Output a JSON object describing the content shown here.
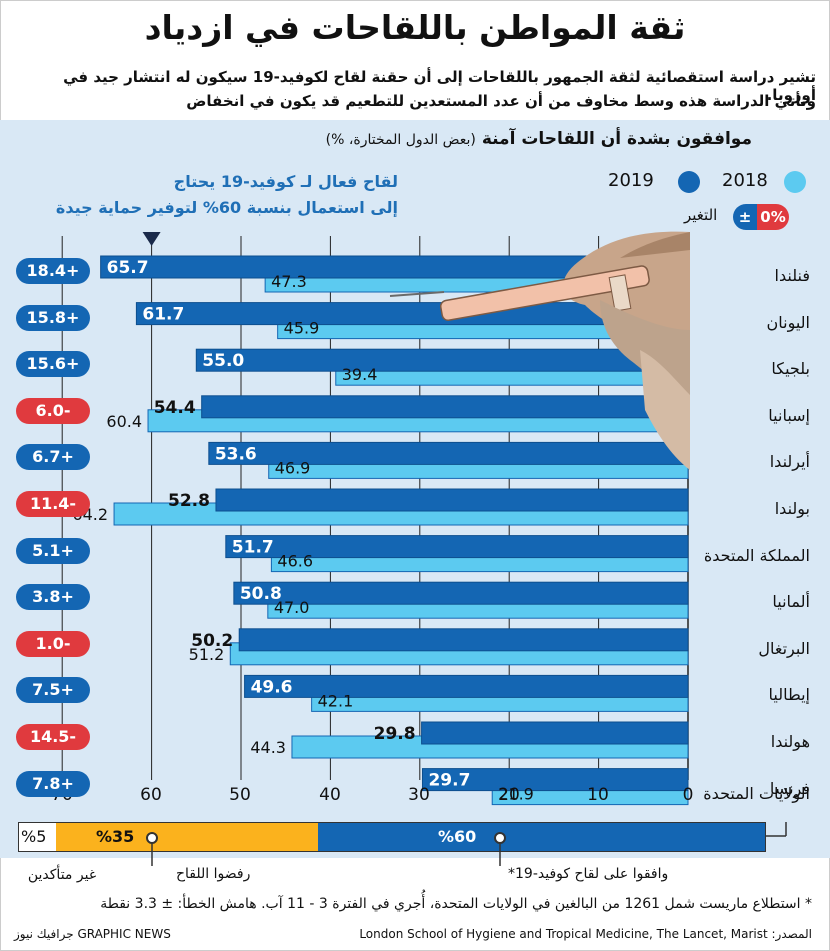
{
  "title": "ثقة المواطن باللقاحات في ازدياد",
  "subtitle_1": "تشير دراسة استقصائية لثقة الجمهور باللقاحات إلى أن حقنة لقاح لكوفيد-19 سيكون له انتشار جيد في أوروبا.",
  "subtitle_2": "وتأتي الدراسة هذه وسط مخاوف من أن عدد المستعدين للتطعيم قد يكون في انخفاض",
  "chart_data": {
    "type": "bar",
    "heading": "موافقون بشدة أن اللقاحات آمنة",
    "heading_note": "(بعض الدول المختارة، %)",
    "callout_1": "لقاح فعال لـ كوفيد-19 يحتاج",
    "callout_2": "إلى استعمال بنسبة 60% لتوفير حماية جيدة",
    "threshold": 60,
    "x_ticks": [
      "70",
      "60",
      "50",
      "40",
      "30",
      "20",
      "10",
      "0"
    ],
    "xlim": [
      0,
      70
    ],
    "legend": {
      "2019": "2019",
      "2018": "2018",
      "change_sign": "±",
      "change_value": "0%",
      "change_label": "التغير",
      "colors": {
        "2019": "#1466b3",
        "2018": "#5ccaf0",
        "positive": "#1466b3",
        "negative": "#e03a3e"
      }
    },
    "categories": [
      "فنلندا",
      "اليونان",
      "بلجيكا",
      "إسبانيا",
      "أيرلندا",
      "بولندا",
      "المملكة المتحدة",
      "ألمانيا",
      "البرتغال",
      "إيطاليا",
      "هولندا",
      "فرنسا"
    ],
    "series": [
      {
        "name": "2019",
        "values": [
          65.7,
          61.7,
          55.0,
          54.4,
          53.6,
          52.8,
          51.7,
          50.8,
          50.2,
          49.6,
          29.8,
          29.7
        ]
      },
      {
        "name": "2018",
        "values": [
          47.3,
          45.9,
          39.4,
          60.4,
          46.9,
          64.2,
          46.6,
          47.0,
          51.2,
          42.1,
          44.3,
          21.9
        ]
      }
    ],
    "value_labels_2019": [
      "65.7",
      "61.7",
      "55.0",
      "54.4",
      "53.6",
      "52.8",
      "51.7",
      "50.8",
      "50.2",
      "49.6",
      "29.8",
      "29.7"
    ],
    "value_labels_2018": [
      "47.3",
      "45.9",
      "39.4",
      "60.4",
      "46.9",
      "64.2",
      "46.6",
      "47.0",
      "51.2",
      "42.1",
      "44.3",
      "21.9"
    ],
    "change": [
      "+18.4",
      "+15.8",
      "+15.6",
      "-6.0",
      "+6.7",
      "-11.4",
      "+5.1",
      "+3.8",
      "-1.0",
      "+7.5",
      "-14.5",
      "+7.8"
    ],
    "change_labels": [
      "18.4+",
      "15.8+",
      "15.6+",
      "6.0-",
      "6.7+",
      "11.4-",
      "5.1+",
      "3.8+",
      "1.0-",
      "7.5+",
      "14.5-",
      "7.8+"
    ]
  },
  "us_survey": {
    "title": "الولايات المتحدة",
    "agreed": 60,
    "refused": 35,
    "unsure": 5,
    "agreed_label": "%60",
    "refused_label": "%35",
    "unsure_label": "%5",
    "agreed_caption": "وافقوا على لقاح كوفيد-19*",
    "refused_caption": "رفضوا اللقاح",
    "unsure_caption": "غير متأكدين"
  },
  "footnote": "* استطلاع ماريست شمل 1261 من البالغين في الولايات المتحدة، أُجري في الفترة 3 - 11 آب. هامش الخطأ: ± 3.3 نقطة",
  "source": "المصدر: London School of Hygiene and Tropical Medicine, The Lancet, Marist",
  "publisher": "GRAPHIC NEWS جرافيك نيوز"
}
